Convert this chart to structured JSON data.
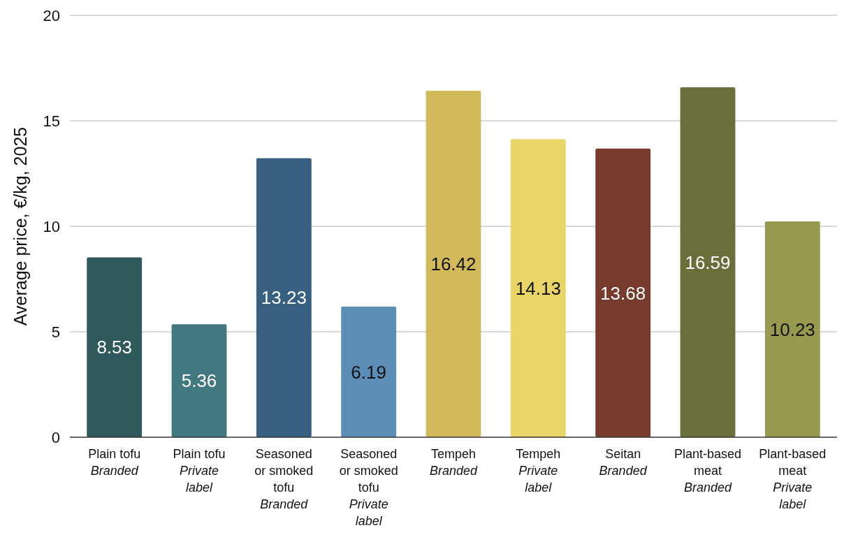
{
  "chart_data": {
    "type": "bar",
    "ylabel": "Average price, €/kg, 2025",
    "categories": [
      "Plain tofu\nBranded",
      "Plain tofu\nPrivate label",
      "Seasoned or smoked tofu\nBranded",
      "Seasoned or smoked tofu\nPrivate label",
      "Tempeh\nBranded",
      "Tempeh\nPrivate label",
      "Seitan\nBranded",
      "Plant-based meat\nBranded",
      "Plant-based meat\nPrivate label"
    ],
    "values": [
      8.53,
      5.36,
      13.23,
      6.19,
      16.42,
      14.13,
      13.68,
      16.59,
      10.23
    ],
    "colors": [
      "#30595b",
      "#427980",
      "#365f80",
      "#5b8db6",
      "#d2ba5a",
      "#e8d566",
      "#763b2c",
      "#6a6e3b",
      "#979a4e"
    ],
    "ylim": [
      0,
      20
    ],
    "yticks": [
      0,
      5,
      10,
      15,
      20
    ],
    "grid": "y",
    "data_labels": true
  }
}
